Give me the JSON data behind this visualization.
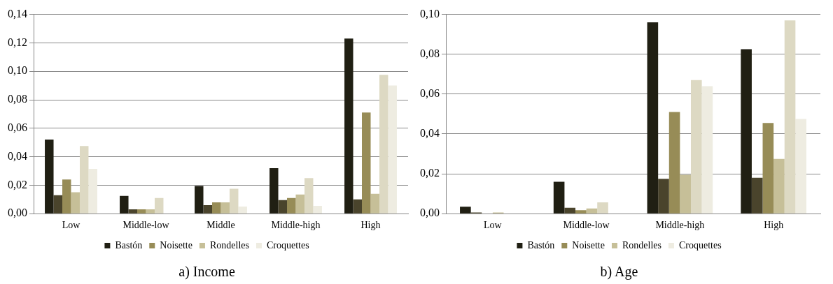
{
  "chart_data": [
    {
      "type": "bar",
      "title": "a) Income",
      "categories": [
        "Low",
        "Middle-low",
        "Middle",
        "Middle-high",
        "High"
      ],
      "series": [
        {
          "name": "Bastón",
          "color": "#201f13",
          "values": [
            0.052,
            0.0125,
            0.0195,
            0.032,
            0.123
          ]
        },
        {
          "color": "#4a442c",
          "values": [
            0.013,
            0.003,
            0.006,
            0.0095,
            0.01
          ]
        },
        {
          "name": "Noisette",
          "color": "#978c57",
          "values": [
            0.024,
            0.003,
            0.008,
            0.011,
            0.071
          ]
        },
        {
          "name": "Rondelles",
          "color": "#c6bf98",
          "values": [
            0.015,
            0.003,
            0.008,
            0.0135,
            0.014
          ]
        },
        {
          "color": "#ddd9c3",
          "values": [
            0.0475,
            0.011,
            0.0175,
            0.025,
            0.0975
          ]
        },
        {
          "name": "Croquettes",
          "color": "#eeece1",
          "values": [
            0.0315,
            null,
            0.005,
            0.0055,
            0.09
          ]
        }
      ],
      "ylim": [
        0,
        0.14
      ],
      "yticks": [
        {
          "value": 0,
          "label": "0,00"
        },
        {
          "value": 0.02,
          "label": "0,02"
        },
        {
          "value": 0.04,
          "label": "0,04"
        },
        {
          "value": 0.06,
          "label": "0,06"
        },
        {
          "value": 0.08,
          "label": "0,08"
        },
        {
          "value": 0.1,
          "label": "0,10"
        },
        {
          "value": 0.12,
          "label": "0,12"
        },
        {
          "value": 0.14,
          "label": "0,14"
        }
      ],
      "grid": "y",
      "legend": "bottom"
    },
    {
      "type": "bar",
      "title": "b) Age",
      "categories": [
        "Low",
        "Middle-low",
        "Middle-high",
        "High"
      ],
      "series": [
        {
          "name": "Bastón",
          "color": "#201f13",
          "values": [
            0.0035,
            0.016,
            0.096,
            0.0825
          ]
        },
        {
          "color": "#4a442c",
          "values": [
            0.0006,
            0.003,
            0.0175,
            0.018
          ]
        },
        {
          "name": "Noisette",
          "color": "#978c57",
          "values": [
            0,
            0.0017,
            0.051,
            0.0455
          ]
        },
        {
          "name": "Rondelles",
          "color": "#c6bf98",
          "values": [
            0.0006,
            0.0026,
            0.0195,
            0.0275
          ]
        },
        {
          "color": "#ddd9c3",
          "values": [
            0,
            0.0057,
            0.067,
            0.097
          ]
        },
        {
          "name": "Croquettes",
          "color": "#eeece1",
          "values": [
            0,
            0,
            0.064,
            0.0475
          ]
        }
      ],
      "ylim": [
        0,
        0.1
      ],
      "yticks": [
        {
          "value": 0,
          "label": "0,00"
        },
        {
          "value": 0.02,
          "label": "0,02"
        },
        {
          "value": 0.04,
          "label": "0,04"
        },
        {
          "value": 0.06,
          "label": "0,06"
        },
        {
          "value": 0.08,
          "label": "0,08"
        },
        {
          "value": 0.1,
          "label": "0,10"
        }
      ],
      "grid": "y",
      "legend": "bottom"
    }
  ]
}
